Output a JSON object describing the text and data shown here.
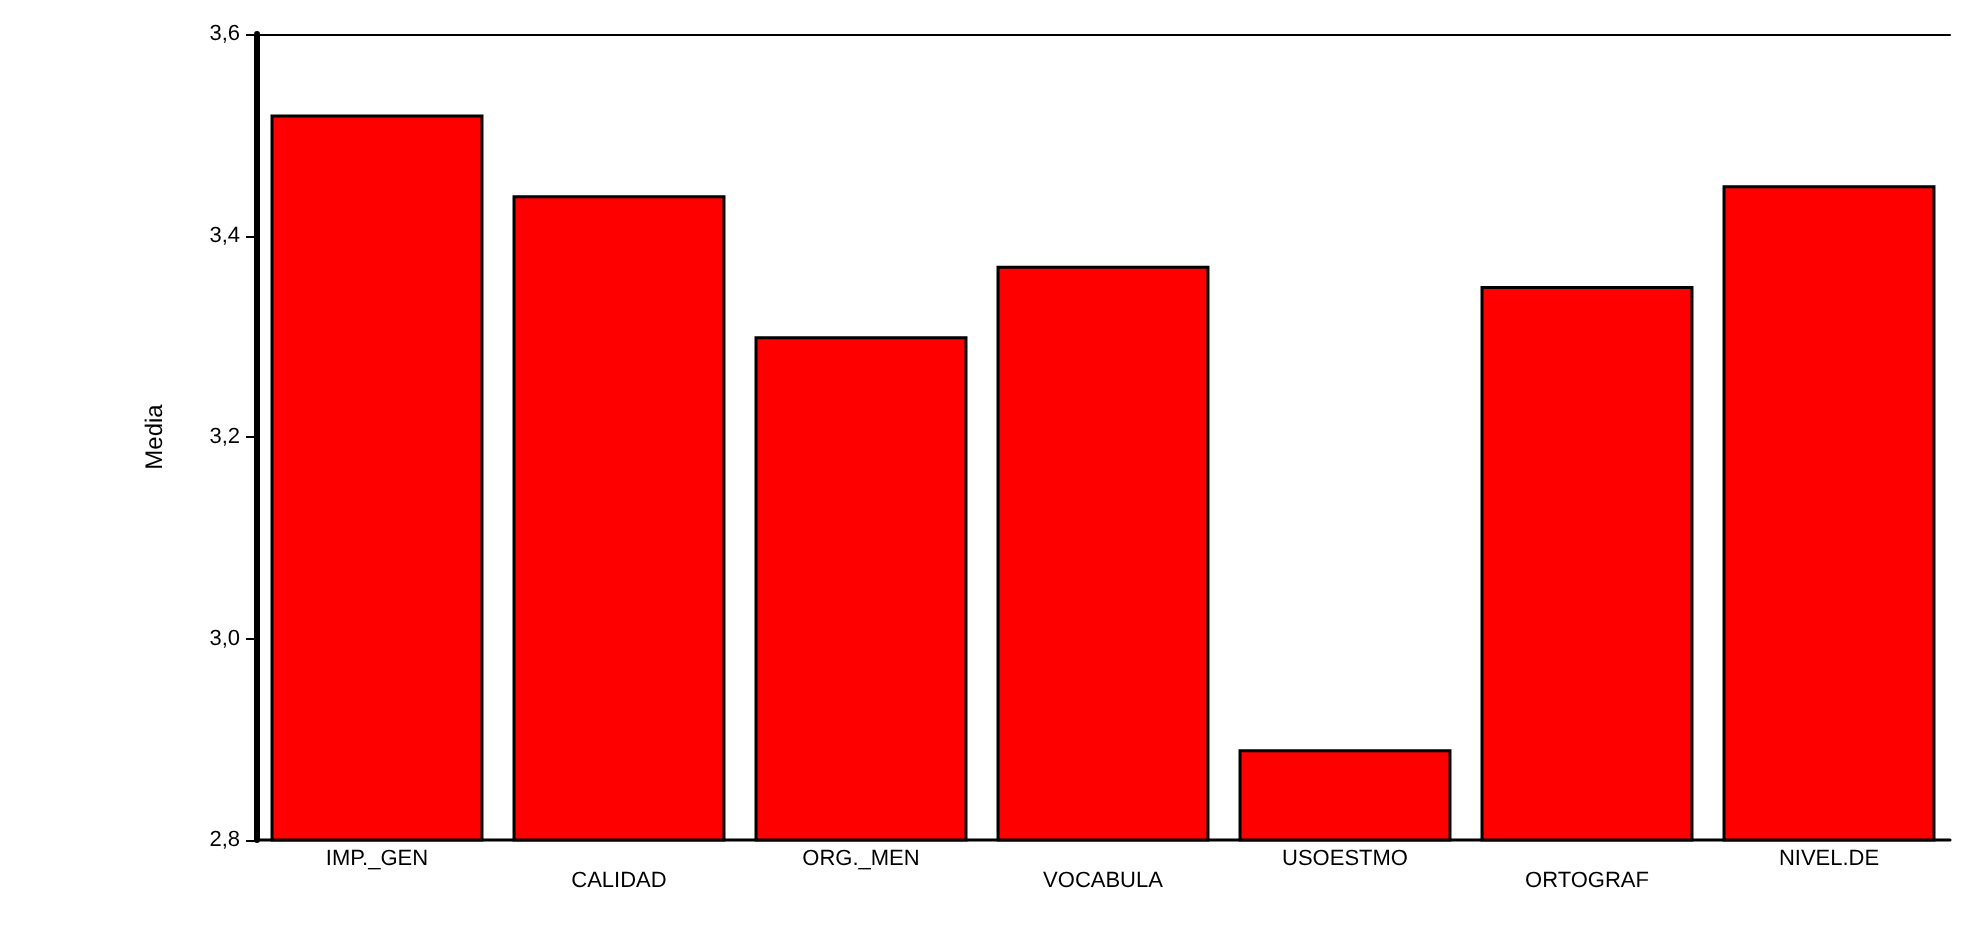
{
  "chart_data": {
    "type": "bar",
    "ylabel": "Media",
    "categories": [
      "IMP._GEN",
      "CALIDAD",
      "ORG._MEN",
      "VOCABULA",
      "USOESTMO",
      "ORTOGRAF",
      "NIVEL.DE"
    ],
    "values": [
      3.52,
      3.44,
      3.3,
      3.37,
      2.89,
      3.35,
      3.45
    ],
    "color": "#ff0000",
    "ylim": [
      2.8,
      3.6
    ],
    "yticks": [
      {
        "value": 2.8,
        "label": "2,8"
      },
      {
        "value": 3.0,
        "label": "3,0"
      },
      {
        "value": 3.2,
        "label": "3,2"
      },
      {
        "value": 3.4,
        "label": "3,4"
      },
      {
        "value": 3.6,
        "label": "3,6"
      }
    ],
    "grid": false
  }
}
